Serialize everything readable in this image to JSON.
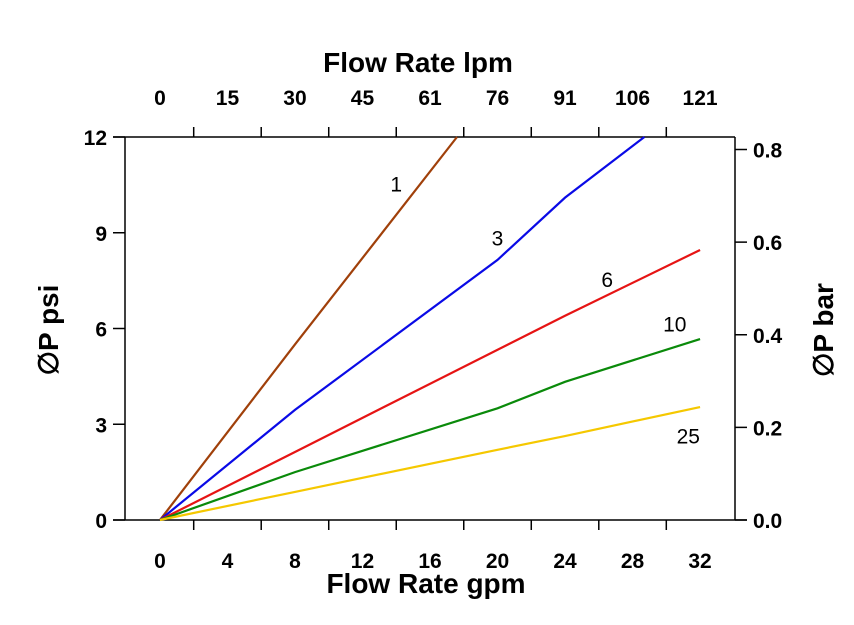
{
  "chart_data": {
    "type": "line",
    "xlabel": "Flow Rate gpm",
    "x2label": "Flow Rate lpm",
    "ylabel": "∅P psi",
    "y2label": "∅P bar",
    "xlim": [
      -2.07,
      34.07
    ],
    "ylim": [
      0,
      12
    ],
    "y2lim": [
      0,
      0.827
    ],
    "xticks": [
      "0",
      "4",
      "8",
      "12",
      "16",
      "20",
      "24",
      "28",
      "32"
    ],
    "xtick_values": [
      0,
      4,
      8,
      12,
      16,
      20,
      24,
      28,
      32
    ],
    "x2ticks": [
      "0",
      "15",
      "30",
      "45",
      "61",
      "76",
      "91",
      "106",
      "121"
    ],
    "yticks": [
      "0",
      "3",
      "6",
      "9",
      "12"
    ],
    "ytick_values": [
      0,
      3,
      6,
      9,
      12
    ],
    "y2ticks": [
      "0.0",
      "0.2",
      "0.4",
      "0.6",
      "0.8"
    ],
    "y2tick_values": [
      0,
      0.2,
      0.4,
      0.6,
      0.8
    ],
    "grid": false,
    "series": [
      {
        "name": "1",
        "color": "#a0400a",
        "x": [
          0,
          8,
          17.6
        ],
        "y": [
          0,
          5.5,
          12
        ]
      },
      {
        "name": "3",
        "color": "#0a0ae6",
        "x": [
          0,
          8,
          20,
          24,
          28.7
        ],
        "y": [
          0,
          3.45,
          8.15,
          10.1,
          12
        ]
      },
      {
        "name": "6",
        "color": "#e61414",
        "x": [
          0,
          8,
          12,
          24,
          32
        ],
        "y": [
          0,
          2.13,
          3.2,
          6.4,
          8.46
        ]
      },
      {
        "name": "10",
        "color": "#0a8a0a",
        "x": [
          0,
          8,
          20,
          24,
          32
        ],
        "y": [
          0,
          1.5,
          3.5,
          4.33,
          5.67
        ]
      },
      {
        "name": "25",
        "color": "#f5c800",
        "x": [
          0,
          8,
          20,
          24,
          32
        ],
        "y": [
          0,
          0.88,
          2.2,
          2.63,
          3.54
        ]
      }
    ],
    "annotations": [
      {
        "text": "1",
        "x": 14,
        "y": 10.3
      },
      {
        "text": "3",
        "x": 20,
        "y": 8.6
      },
      {
        "text": "6",
        "x": 26.5,
        "y": 7.3
      },
      {
        "text": "10",
        "x": 30.5,
        "y": 5.9
      },
      {
        "text": "25",
        "x": 31.3,
        "y": 2.4
      }
    ]
  }
}
